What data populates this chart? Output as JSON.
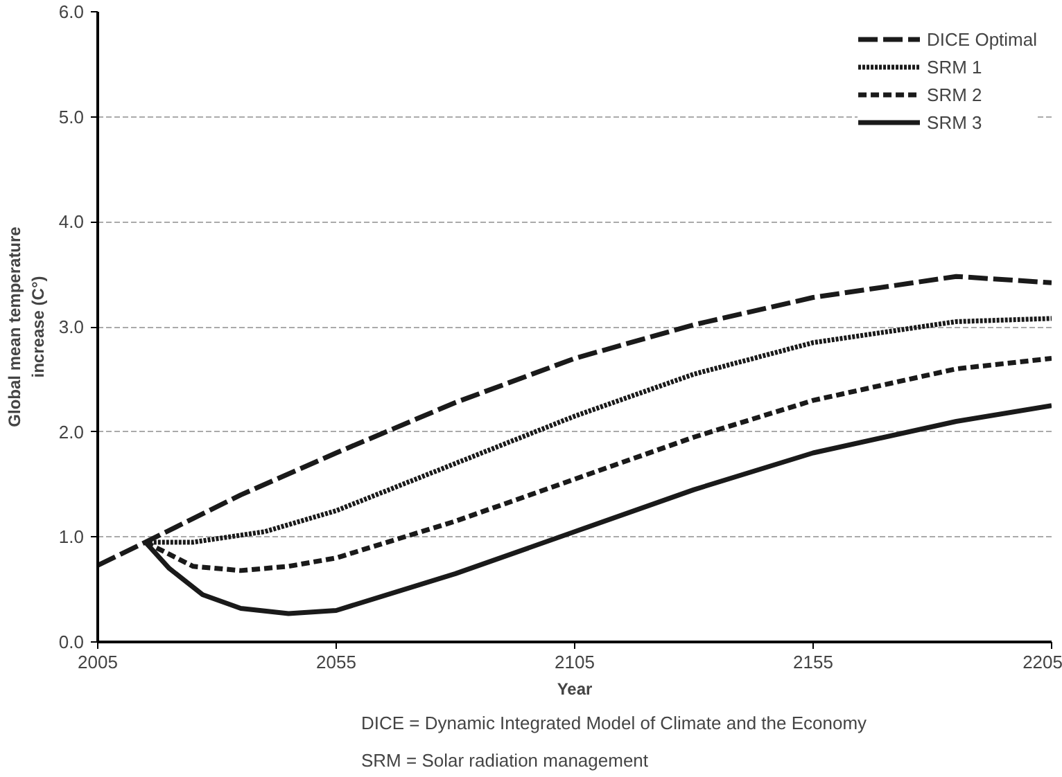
{
  "chart_data": {
    "type": "line",
    "xlabel": "Year",
    "ylabel": "Global mean temperature\nincrease (C°)",
    "xlim": [
      2005,
      2205
    ],
    "xticks": [
      2005,
      2055,
      2105,
      2155,
      2205
    ],
    "ylim": [
      0,
      6
    ],
    "yticks": [
      {
        "value": 0,
        "label": "0.0"
      },
      {
        "value": 1,
        "label": "1.0"
      },
      {
        "value": 2,
        "label": "2.0"
      },
      {
        "value": 3,
        "label": "3.0"
      },
      {
        "value": 4,
        "label": "4.0"
      },
      {
        "value": 5,
        "label": "5.0"
      },
      {
        "value": 6,
        "label": "6.0"
      }
    ],
    "grid": "y",
    "legend": "top right",
    "series": [
      {
        "name": "DICE Optimal",
        "color": "#1a1a1a",
        "line_style": "longdash",
        "x": [
          2005,
          2015,
          2035,
          2055,
          2080,
          2105,
          2130,
          2155,
          2185,
          2205
        ],
        "values": [
          0.73,
          0.95,
          1.4,
          1.8,
          2.28,
          2.7,
          3.02,
          3.28,
          3.48,
          3.42
        ]
      },
      {
        "name": "SRM 1",
        "color": "#1a1a1a",
        "line_style": "dotted",
        "x": [
          2015,
          2025,
          2040,
          2055,
          2080,
          2105,
          2130,
          2155,
          2185,
          2205
        ],
        "values": [
          0.95,
          0.95,
          1.05,
          1.25,
          1.7,
          2.15,
          2.55,
          2.85,
          3.05,
          3.08
        ]
      },
      {
        "name": "SRM 2",
        "color": "#1a1a1a",
        "line_style": "dashed",
        "x": [
          2015,
          2025,
          2035,
          2045,
          2055,
          2080,
          2105,
          2130,
          2155,
          2185,
          2205
        ],
        "values": [
          0.95,
          0.72,
          0.68,
          0.72,
          0.8,
          1.15,
          1.55,
          1.95,
          2.3,
          2.6,
          2.7
        ]
      },
      {
        "name": "SRM 3",
        "color": "#1a1a1a",
        "line_style": "solid",
        "x": [
          2015,
          2020,
          2027,
          2035,
          2045,
          2055,
          2080,
          2105,
          2130,
          2155,
          2185,
          2205
        ],
        "values": [
          0.95,
          0.7,
          0.45,
          0.32,
          0.27,
          0.3,
          0.65,
          1.05,
          1.45,
          1.8,
          2.1,
          2.25
        ]
      }
    ],
    "annotations": [
      "DICE = Dynamic Integrated Model of Climate and the Economy",
      "SRM = Solar radiation management"
    ]
  }
}
